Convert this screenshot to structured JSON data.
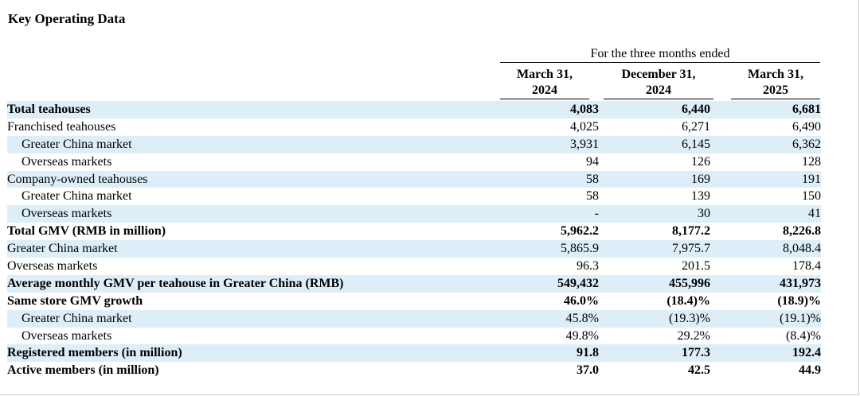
{
  "title": "Key Operating Data",
  "header": {
    "period": "For the three months ended",
    "columns": [
      {
        "line1": "March 31,",
        "line2": "2024"
      },
      {
        "line1": "December 31,",
        "line2": "2024"
      },
      {
        "line1": "March 31,",
        "line2": "2025"
      }
    ]
  },
  "rows": [
    {
      "label": "Total teahouses",
      "values": [
        "4,083",
        "6,440",
        "6,681"
      ]
    },
    {
      "label": "Franchised teahouses",
      "values": [
        "4,025",
        "6,271",
        "6,490"
      ]
    },
    {
      "label": "Greater China market",
      "values": [
        "3,931",
        "6,145",
        "6,362"
      ]
    },
    {
      "label": "Overseas markets",
      "values": [
        "94",
        "126",
        "128"
      ]
    },
    {
      "label": "Company-owned teahouses",
      "values": [
        "58",
        "169",
        "191"
      ]
    },
    {
      "label": "Greater China market",
      "values": [
        "58",
        "139",
        "150"
      ]
    },
    {
      "label": "Overseas markets",
      "values": [
        "-",
        "30",
        "41"
      ]
    },
    {
      "label": "Total GMV (RMB in million)",
      "values": [
        "5,962.2",
        "8,177.2",
        "8,226.8"
      ]
    },
    {
      "label": "Greater China market",
      "values": [
        "5,865.9",
        "7,975.7",
        "8,048.4"
      ]
    },
    {
      "label": "Overseas markets",
      "values": [
        "96.3",
        "201.5",
        "178.4"
      ]
    },
    {
      "label": "Average monthly GMV per teahouse in Greater China (RMB)",
      "values": [
        "549,432",
        "455,996",
        "431,973"
      ]
    },
    {
      "label": "Same store GMV growth",
      "values": [
        "46.0%",
        "(18.4)%",
        "(18.9)%"
      ]
    },
    {
      "label": "Greater China market",
      "values": [
        "45.8%",
        "(19.3)%",
        "(19.1)%"
      ]
    },
    {
      "label": "Overseas markets",
      "values": [
        "49.8%",
        "29.2%",
        "(8.4)%"
      ]
    },
    {
      "label": "Registered members (in million)",
      "values": [
        "91.8",
        "177.3",
        "192.4"
      ]
    },
    {
      "label": "Active members (in million)",
      "values": [
        "37.0",
        "42.5",
        "44.9"
      ]
    }
  ]
}
